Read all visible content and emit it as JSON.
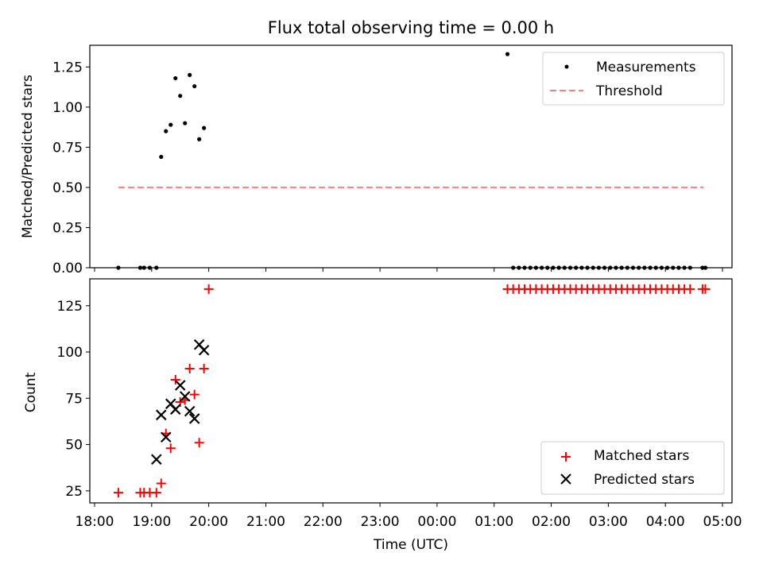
{
  "chart_data": [
    {
      "type": "scatter",
      "title": "Flux total observing time = 0.00 h",
      "ylabel": "Matched/Predicted stars",
      "xlabel": "",
      "ylim": [
        0,
        1.385
      ],
      "xlim": [
        "18:00",
        "05:00"
      ],
      "yticks": [
        "0.00",
        "0.25",
        "0.50",
        "0.75",
        "1.00",
        "1.25"
      ],
      "legend": {
        "position": "top-right",
        "entries": [
          "Measurements",
          "Threshold"
        ]
      },
      "threshold": {
        "name": "Threshold",
        "value": 0.5,
        "x_start": "18:25",
        "x_end": "04:40",
        "color": "#ff7f7f"
      },
      "series": [
        {
          "name": "Measurements",
          "x": [
            "18:25",
            "18:48",
            "18:52",
            "18:58",
            "19:05",
            "19:10",
            "19:15",
            "19:20",
            "19:25",
            "19:30",
            "19:35",
            "19:40",
            "19:45",
            "19:50",
            "19:55",
            "01:14",
            "01:20",
            "01:26",
            "01:32",
            "01:38",
            "01:44",
            "01:50",
            "01:56",
            "02:02",
            "02:08",
            "02:14",
            "02:20",
            "02:26",
            "02:32",
            "02:38",
            "02:44",
            "02:50",
            "02:56",
            "03:02",
            "03:08",
            "03:14",
            "03:20",
            "03:26",
            "03:32",
            "03:38",
            "03:44",
            "03:50",
            "03:56",
            "04:02",
            "04:08",
            "04:14",
            "04:20",
            "04:26",
            "04:39",
            "04:42"
          ],
          "y": [
            0,
            0,
            0,
            0,
            0,
            0.69,
            0.85,
            0.89,
            1.18,
            1.07,
            0.9,
            1.2,
            1.13,
            0.8,
            0.87,
            1.33,
            0,
            0,
            0,
            0,
            0,
            0,
            0,
            0,
            0,
            0,
            0,
            0,
            0,
            0,
            0,
            0,
            0,
            0,
            0,
            0,
            0,
            0,
            0,
            0,
            0,
            0,
            0,
            0,
            0,
            0,
            0,
            0,
            0,
            0
          ],
          "color": "#000000"
        }
      ]
    },
    {
      "type": "scatter",
      "title": "",
      "ylabel": "Count",
      "xlabel": "Time (UTC)",
      "ylim": [
        18.5,
        139.5
      ],
      "xticks": [
        "18:00",
        "19:00",
        "20:00",
        "21:00",
        "22:00",
        "23:00",
        "00:00",
        "01:00",
        "02:00",
        "03:00",
        "04:00",
        "05:00"
      ],
      "yticks": [
        "25",
        "50",
        "75",
        "100",
        "125"
      ],
      "legend": {
        "position": "bottom-right",
        "entries": [
          "Matched stars",
          "Predicted stars"
        ]
      },
      "series": [
        {
          "name": "Matched stars",
          "marker": "+",
          "color": "#ff0000",
          "x": [
            "18:25",
            "18:48",
            "18:52",
            "18:58",
            "19:05",
            "19:10",
            "19:15",
            "19:20",
            "19:25",
            "19:30",
            "19:35",
            "19:40",
            "19:45",
            "19:50",
            "19:55",
            "20:00",
            "01:14",
            "01:20",
            "01:26",
            "01:32",
            "01:38",
            "01:44",
            "01:50",
            "01:56",
            "02:02",
            "02:08",
            "02:14",
            "02:20",
            "02:26",
            "02:32",
            "02:38",
            "02:44",
            "02:50",
            "02:56",
            "03:02",
            "03:08",
            "03:14",
            "03:20",
            "03:26",
            "03:32",
            "03:38",
            "03:44",
            "03:50",
            "03:56",
            "04:02",
            "04:08",
            "04:14",
            "04:20",
            "04:26",
            "04:39",
            "04:42"
          ],
          "y": [
            24,
            24,
            24,
            24,
            24,
            29,
            56,
            48,
            85,
            73,
            74,
            91,
            77,
            51,
            91,
            134,
            134,
            134,
            134,
            134,
            134,
            134,
            134,
            134,
            134,
            134,
            134,
            134,
            134,
            134,
            134,
            134,
            134,
            134,
            134,
            134,
            134,
            134,
            134,
            134,
            134,
            134,
            134,
            134,
            134,
            134,
            134,
            134,
            134,
            134,
            134
          ]
        },
        {
          "name": "Predicted stars",
          "marker": "x",
          "color": "#000000",
          "x": [
            "19:05",
            "19:10",
            "19:15",
            "19:20",
            "19:25",
            "19:30",
            "19:35",
            "19:40",
            "19:45",
            "19:50",
            "19:55"
          ],
          "y": [
            42,
            66,
            54,
            72,
            69,
            82,
            76,
            68,
            64,
            104,
            101
          ]
        }
      ]
    }
  ]
}
